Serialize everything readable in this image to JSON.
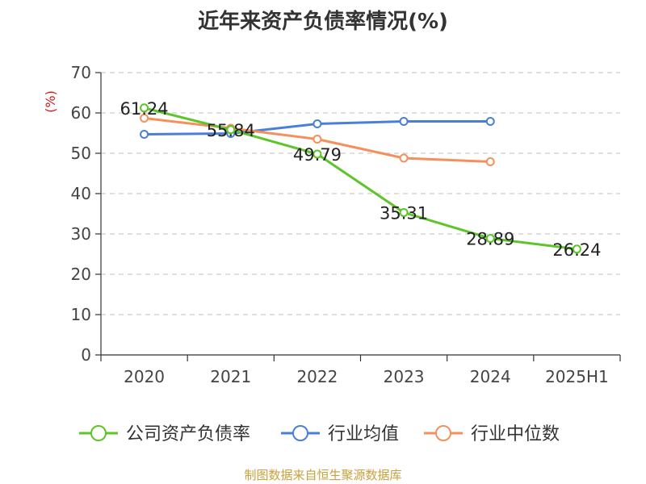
{
  "title": "近年来资产负债率情况(%)",
  "source": "制图数据来自恒生聚源数据库",
  "chart_data": {
    "type": "line",
    "title": "近年来资产负债率情况(%)",
    "ylabel": "(%)",
    "xlabel": "",
    "categories": [
      "2020",
      "2021",
      "2022",
      "2023",
      "2024",
      "2025H1"
    ],
    "ylim": [
      0,
      70
    ],
    "yticks": [
      0,
      10,
      20,
      30,
      40,
      50,
      60,
      70
    ],
    "grid": true,
    "legend_position": "bottom",
    "series": [
      {
        "name": "公司资产负债率",
        "color": "#5cc527",
        "values": [
          61.24,
          55.84,
          49.79,
          35.31,
          28.89,
          26.24
        ],
        "labels": [
          "61.24",
          "55.84",
          "49.79",
          "35.31",
          "28.89",
          "26.24"
        ]
      },
      {
        "name": "行业均值",
        "color": "#4a7fd9",
        "values": [
          54.7,
          54.9,
          57.3,
          57.9,
          57.9,
          null
        ]
      },
      {
        "name": "行业中位数",
        "color": "#f5905c",
        "values": [
          58.7,
          56.2,
          53.5,
          48.8,
          47.9,
          null
        ]
      }
    ]
  }
}
